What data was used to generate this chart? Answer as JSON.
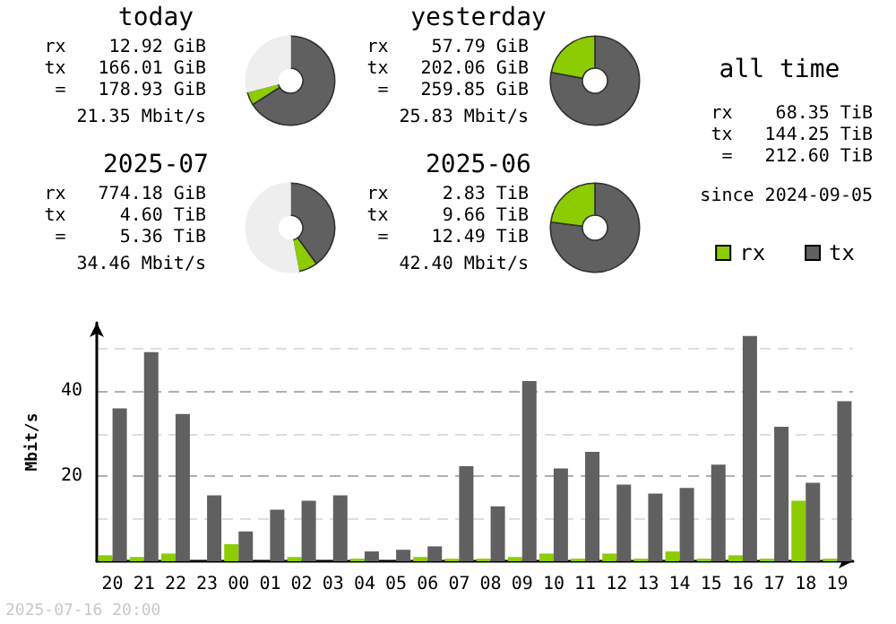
{
  "chart_data": [
    {
      "type": "donut",
      "title": "today",
      "categories": [
        null,
        null,
        null
      ],
      "values": [
        66,
        5,
        29
      ],
      "colors": [
        "#606060",
        "#8ccc00",
        "#eeeeee"
      ],
      "annotations": [
        "rx    12.92 GiB",
        "tx   166.01 GiB",
        " =   178.93 GiB",
        "21.35 Mbit/s"
      ]
    },
    {
      "type": "donut",
      "title": "yesterday",
      "categories": [
        null,
        null
      ],
      "values": [
        78,
        22
      ],
      "colors": [
        "#606060",
        "#8ccc00"
      ],
      "annotations": [
        "rx    57.79 GiB",
        "tx   202.06 GiB",
        " =   259.85 GiB",
        "25.83 Mbit/s"
      ]
    },
    {
      "type": "other",
      "title": "all time",
      "annotations": [
        "rx    68.35 TiB",
        "tx   144.25 TiB",
        " =   212.60 TiB",
        "since 2024-09-05"
      ]
    },
    {
      "type": "donut",
      "title": "2025-07",
      "categories": [
        null,
        null,
        null
      ],
      "values": [
        40,
        7,
        53
      ],
      "colors": [
        "#606060",
        "#8ccc00",
        "#eeeeee"
      ],
      "annotations": [
        "rx   774.18 GiB",
        "tx     4.60 TiB",
        " =     5.36 TiB",
        "34.46 Mbit/s"
      ]
    },
    {
      "type": "donut",
      "title": "2025-06",
      "categories": [
        null,
        null
      ],
      "values": [
        77,
        23
      ],
      "colors": [
        "#606060",
        "#8ccc00"
      ],
      "annotations": [
        "rx     2.83 TiB",
        "tx     9.66 TiB",
        " =    12.49 TiB",
        "42.40 Mbit/s"
      ]
    },
    {
      "type": "bar",
      "ylabel": "Mbit/s",
      "categories": [
        "20",
        "21",
        "22",
        "23",
        "00",
        "01",
        "02",
        "03",
        "04",
        "05",
        "06",
        "07",
        "08",
        "09",
        "10",
        "11",
        "12",
        "13",
        "14",
        "15",
        "16",
        "17",
        "18",
        "19"
      ],
      "series": [
        {
          "name": "rx",
          "color": "#8ccc00",
          "values": [
            1.4,
            1.0,
            1.8,
            0,
            4.0,
            0,
            1.0,
            0,
            0.6,
            0,
            1.0,
            0.6,
            0.6,
            1.0,
            1.8,
            0.6,
            1.8,
            0.6,
            2.3,
            0.6,
            1.4,
            0.6,
            14.2,
            0.6
          ]
        },
        {
          "name": "tx",
          "color": "#606060",
          "values": [
            35.9,
            49.1,
            34.6,
            15.5,
            7.0,
            12.1,
            14.2,
            15.5,
            2.3,
            2.7,
            3.5,
            22.3,
            12.9,
            42.3,
            21.8,
            25.7,
            18.0,
            15.9,
            17.2,
            22.7,
            52.9,
            31.6,
            18.4,
            37.6
          ]
        }
      ],
      "ylim": [
        0,
        56
      ],
      "yticks": [
        {
          "value": 10,
          "label": null
        },
        20,
        {
          "value": 30,
          "label": null
        },
        40,
        {
          "value": 50,
          "label": null
        }
      ],
      "grid": "y",
      "legend": "top right",
      "annotations": [
        "2025-07-16 20:00"
      ]
    }
  ]
}
